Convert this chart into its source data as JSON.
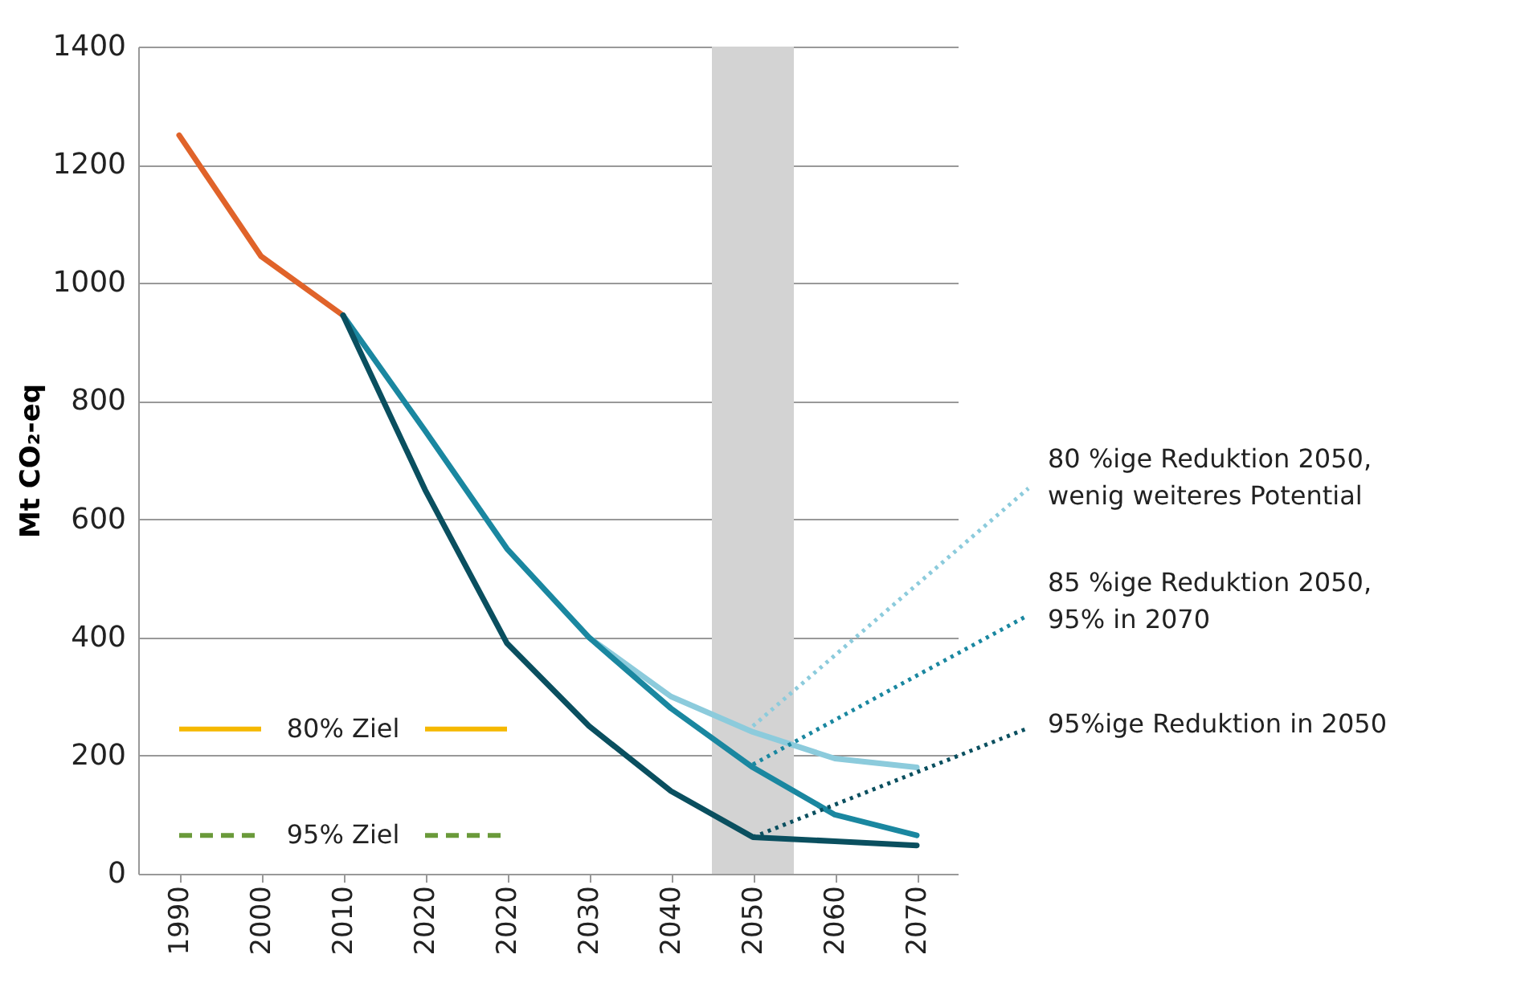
{
  "chart_data": {
    "type": "line",
    "ylabel": "Mt CO₂-eq",
    "categories": [
      "1990",
      "2000",
      "2010",
      "2020",
      "2020",
      "2030",
      "2040",
      "2050",
      "2060",
      "2070"
    ],
    "series": [
      {
        "color": "#e0632a",
        "values": [
          1250,
          1045,
          945,
          null,
          null,
          null,
          null,
          null,
          null,
          null
        ]
      },
      {
        "color": "#8ccbdc",
        "values": [
          null,
          null,
          null,
          null,
          null,
          400,
          300,
          240,
          195,
          180
        ]
      },
      {
        "color": "#1a87a0",
        "values": [
          null,
          null,
          945,
          750,
          550,
          400,
          280,
          180,
          100,
          65
        ]
      },
      {
        "color": "#0a4f5f",
        "values": [
          null,
          null,
          945,
          650,
          390,
          250,
          140,
          62,
          55,
          48
        ]
      }
    ],
    "ylim": [
      0,
      1400
    ],
    "yticks": [
      0,
      200,
      400,
      600,
      800,
      1000,
      1200,
      1400
    ],
    "grid": "y",
    "line_style": "solid",
    "marker": "none",
    "ref_lines": [
      {
        "axis": "y",
        "value": 245,
        "label": "80% Ziel",
        "color": "#f5b800",
        "line_style": "solid"
      },
      {
        "axis": "y",
        "value": 65,
        "label": "95% Ziel",
        "color": "#6a9a3a",
        "line_style": "dashed"
      }
    ],
    "bands": [
      {
        "axis": "x",
        "from": "2050",
        "to": "2050",
        "color": "#d3d3d3"
      }
    ],
    "annotations": [
      {
        "text": "80 %ige Reduktion 2050,\nwenig weiteres  Potential",
        "x": "2050",
        "y": 250
      },
      {
        "text": "85 %ige Reduktion 2050,\n95% in 2070",
        "x": "2050",
        "y": 185
      },
      {
        "text": "95%ige Reduktion in 2050",
        "x": "2050",
        "y": 62
      }
    ]
  }
}
